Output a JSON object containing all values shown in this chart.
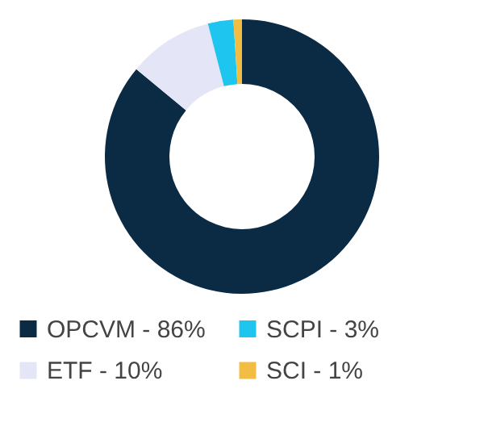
{
  "chart_data": {
    "type": "donut",
    "categories": [
      "OPCVM - 86%",
      "ETF - 10%",
      "SCPI - 3%",
      "SCI - 1%"
    ],
    "values": [
      86,
      10,
      3,
      1
    ],
    "colors": [
      "#0b2a44",
      "#e4e6f7",
      "#1ec6ef",
      "#f2bd43"
    ],
    "legend": "bottom"
  }
}
